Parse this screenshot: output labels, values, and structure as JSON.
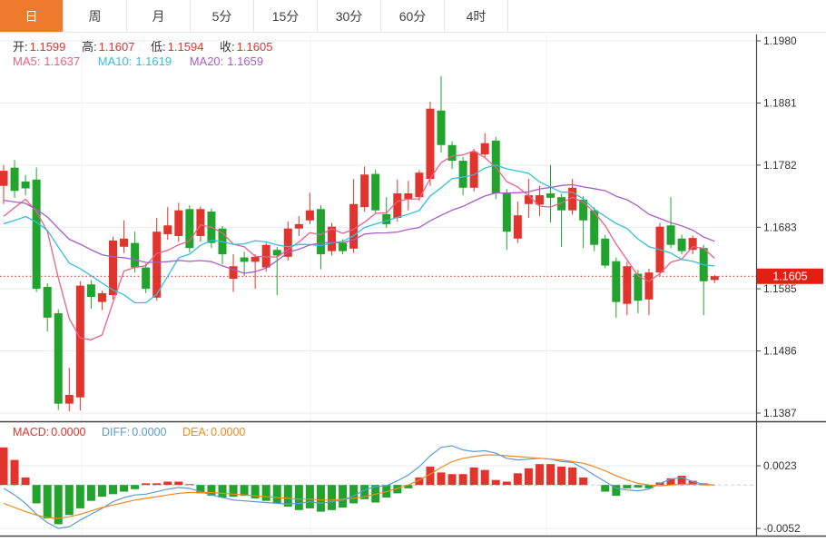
{
  "tabs": {
    "items": [
      {
        "label": "日",
        "active": true
      },
      {
        "label": "周",
        "active": false
      },
      {
        "label": "月",
        "active": false
      },
      {
        "label": "5分",
        "active": false
      },
      {
        "label": "15分",
        "active": false
      },
      {
        "label": "30分",
        "active": false
      },
      {
        "label": "60分",
        "active": false
      },
      {
        "label": "4时",
        "active": false
      }
    ]
  },
  "legend": {
    "open_label": "开:",
    "open": "1.1599",
    "high_label": "高:",
    "high": "1.1607",
    "low_label": "低:",
    "low": "1.1594",
    "close_label": "收:",
    "close": "1.1605",
    "ma5_label": "MA5:",
    "ma5": "1.1637",
    "ma10_label": "MA10:",
    "ma10": "1.1619",
    "ma20_label": "MA20:",
    "ma20": "1.1659"
  },
  "macd_legend": {
    "macd_label": "MACD:",
    "macd": "0.0000",
    "diff_label": "DIFF:",
    "diff": "0.0000",
    "dea_label": "DEA:",
    "dea": "0.0000"
  },
  "price_axis": {
    "ticks": [
      "1.1980",
      "1.1881",
      "1.1782",
      "1.1683",
      "1.1585",
      "1.1486",
      "1.1387"
    ],
    "last_price": "1.1605"
  },
  "macd_axis": {
    "ticks": [
      "0.0023",
      "-0.0052"
    ]
  },
  "colors": {
    "accent_orange": "#ee7b2d",
    "up_red": "#e0342c",
    "down_green": "#22a32e",
    "ma5_pink": "#ec6088",
    "ma10_cyan": "#33c0d8",
    "ma20_purple": "#a85cc8",
    "diff_blue": "#5b9bd5",
    "dea_orange": "#ee8a22",
    "value_red": "#e0342c",
    "label_dark": "#333333",
    "grid": "#e7edf2",
    "grid_vertical": "#f0f2f4",
    "axis_line": "#444444",
    "zero_dash": "#bcd2e0",
    "badge_red": "#e31f14",
    "badge_text": "#ffffff"
  },
  "chart_data": {
    "type": "candlestick+macd",
    "title": "",
    "up_means": "close>=open (red)",
    "down_means": "close<open (green)",
    "y_ticks": [
      1.198,
      1.1881,
      1.1782,
      1.1683,
      1.1585,
      1.1486,
      1.1387
    ],
    "price_line": 1.1605,
    "ma_periods": [
      5,
      10,
      20
    ],
    "ma_seed_closes": [
      1.1795,
      1.179,
      1.1782,
      1.1775,
      1.1768,
      1.176,
      1.1752,
      1.1745,
      1.1738,
      1.173,
      1.1688,
      1.1682,
      1.1675,
      1.167,
      1.1668,
      1.1672,
      1.1678,
      1.1685,
      1.1695
    ],
    "candles": [
      [
        1.1749,
        1.1782,
        1.172,
        1.1773
      ],
      [
        1.1778,
        1.179,
        1.173,
        1.1741
      ],
      [
        1.1756,
        1.1766,
        1.1734,
        1.1745
      ],
      [
        1.1759,
        1.1778,
        1.158,
        1.1585
      ],
      [
        1.1588,
        1.1594,
        1.1517,
        1.1539
      ],
      [
        1.1546,
        1.1552,
        1.1392,
        1.1402
      ],
      [
        1.1402,
        1.1459,
        1.139,
        1.1416
      ],
      [
        1.1412,
        1.1597,
        1.1391,
        1.159
      ],
      [
        1.1592,
        1.1599,
        1.1553,
        1.1572
      ],
      [
        1.1564,
        1.1582,
        1.1551,
        1.1578
      ],
      [
        1.1575,
        1.1668,
        1.1568,
        1.1662
      ],
      [
        1.1652,
        1.1694,
        1.1642,
        1.1665
      ],
      [
        1.1658,
        1.1676,
        1.1611,
        1.1619
      ],
      [
        1.1619,
        1.1625,
        1.1578,
        1.1585
      ],
      [
        1.1571,
        1.1698,
        1.1566,
        1.1676
      ],
      [
        1.1672,
        1.1715,
        1.1663,
        1.1686
      ],
      [
        1.1669,
        1.1722,
        1.166,
        1.171
      ],
      [
        1.1712,
        1.1718,
        1.1643,
        1.165
      ],
      [
        1.1669,
        1.1716,
        1.166,
        1.1712
      ],
      [
        1.1708,
        1.1713,
        1.165,
        1.1658
      ],
      [
        1.1681,
        1.1685,
        1.1624,
        1.164
      ],
      [
        1.1601,
        1.164,
        1.158,
        1.1621
      ],
      [
        1.1635,
        1.1644,
        1.1605,
        1.1628
      ],
      [
        1.1628,
        1.164,
        1.1585,
        1.1636
      ],
      [
        1.1619,
        1.1658,
        1.1612,
        1.1655
      ],
      [
        1.1647,
        1.1652,
        1.1575,
        1.1638
      ],
      [
        1.1636,
        1.1692,
        1.163,
        1.1681
      ],
      [
        1.1681,
        1.1701,
        1.1669,
        1.1688
      ],
      [
        1.1694,
        1.1738,
        1.1688,
        1.171
      ],
      [
        1.1712,
        1.1718,
        1.1616,
        1.164
      ],
      [
        1.1645,
        1.169,
        1.1638,
        1.1684
      ],
      [
        1.1658,
        1.1664,
        1.164,
        1.1645
      ],
      [
        1.1649,
        1.176,
        1.1642,
        1.172
      ],
      [
        1.1715,
        1.178,
        1.1708,
        1.1767
      ],
      [
        1.1768,
        1.1775,
        1.1705,
        1.171
      ],
      [
        1.1704,
        1.1731,
        1.1682,
        1.1688
      ],
      [
        1.1698,
        1.1759,
        1.1692,
        1.1737
      ],
      [
        1.1728,
        1.1757,
        1.171,
        1.1737
      ],
      [
        1.1731,
        1.1774,
        1.1725,
        1.177
      ],
      [
        1.176,
        1.1883,
        1.1749,
        1.1872
      ],
      [
        1.1869,
        1.1924,
        1.1802,
        1.1814
      ],
      [
        1.1814,
        1.182,
        1.1776,
        1.1789
      ],
      [
        1.1789,
        1.1795,
        1.1734,
        1.1746
      ],
      [
        1.1746,
        1.1808,
        1.174,
        1.1803
      ],
      [
        1.1799,
        1.1833,
        1.1793,
        1.1817
      ],
      [
        1.1821,
        1.1827,
        1.1728,
        1.1737
      ],
      [
        1.1738,
        1.1744,
        1.1647,
        1.1676
      ],
      [
        1.1665,
        1.1724,
        1.1658,
        1.1702
      ],
      [
        1.172,
        1.176,
        1.1698,
        1.1734
      ],
      [
        1.1719,
        1.1749,
        1.1701,
        1.1734
      ],
      [
        1.1737,
        1.1782,
        1.1691,
        1.173
      ],
      [
        1.1731,
        1.1736,
        1.1652,
        1.171
      ],
      [
        1.171,
        1.176,
        1.1703,
        1.1746
      ],
      [
        1.1727,
        1.1733,
        1.165,
        1.1694
      ],
      [
        1.171,
        1.1715,
        1.1645,
        1.1655
      ],
      [
        1.1665,
        1.1671,
        1.1618,
        1.1622
      ],
      [
        1.1629,
        1.1635,
        1.1539,
        1.1564
      ],
      [
        1.1561,
        1.1628,
        1.1543,
        1.1621
      ],
      [
        1.1609,
        1.1615,
        1.1546,
        1.1566
      ],
      [
        1.1568,
        1.1617,
        1.1543,
        1.1611
      ],
      [
        1.1611,
        1.169,
        1.1605,
        1.1684
      ],
      [
        1.1686,
        1.1731,
        1.165,
        1.1655
      ],
      [
        1.1665,
        1.1671,
        1.164,
        1.1645
      ],
      [
        1.1647,
        1.167,
        1.164,
        1.1666
      ],
      [
        1.165,
        1.1655,
        1.1543,
        1.1597
      ],
      [
        1.1599,
        1.1607,
        1.1594,
        1.1605
      ]
    ],
    "macd": {
      "y_ticks": [
        0.0023,
        -0.0052
      ],
      "hist": [
        0.0045,
        0.003,
        0.0009,
        -0.0022,
        -0.004,
        -0.0047,
        -0.0036,
        -0.0028,
        -0.0019,
        -0.0014,
        -0.0011,
        -0.0008,
        -0.0005,
        0.0002,
        0.0002,
        0.0004,
        0.0004,
        0.0001,
        -0.001,
        -0.0013,
        -0.0015,
        -0.0014,
        -0.0013,
        -0.0016,
        -0.0019,
        -0.0022,
        -0.0026,
        -0.003,
        -0.0028,
        -0.0032,
        -0.003,
        -0.0027,
        -0.0022,
        -0.0017,
        -0.0021,
        -0.0015,
        -0.001,
        -0.0004,
        0.0009,
        0.0022,
        0.0015,
        0.0013,
        0.0013,
        0.0021,
        0.0018,
        0.0006,
        0.0004,
        0.0014,
        0.002,
        0.0025,
        0.0025,
        0.0022,
        0.0021,
        0.0009,
        0.0,
        -0.0008,
        -0.0013,
        -0.0004,
        -0.0003,
        -0.0004,
        0.0003,
        0.0008,
        0.0011,
        0.0005,
        0.0002,
        0.0
      ],
      "diff": [
        -0.0004,
        -0.0012,
        -0.0022,
        -0.0035,
        -0.0045,
        -0.0052,
        -0.005,
        -0.0042,
        -0.0035,
        -0.0028,
        -0.002,
        -0.0015,
        -0.0012,
        -0.0011,
        -0.0008,
        -0.0005,
        -0.0003,
        -0.0004,
        -0.0008,
        -0.0012,
        -0.0015,
        -0.0018,
        -0.0019,
        -0.002,
        -0.0021,
        -0.0022,
        -0.0023,
        -0.0022,
        -0.002,
        -0.0022,
        -0.002,
        -0.0018,
        -0.0013,
        -0.0006,
        -0.0002,
        -0.0001,
        0.0005,
        0.0012,
        0.0022,
        0.0035,
        0.0045,
        0.0047,
        0.0042,
        0.004,
        0.0041,
        0.0038,
        0.0032,
        0.003,
        0.0031,
        0.0032,
        0.0031,
        0.0028,
        0.0027,
        0.002,
        0.0012,
        0.0004,
        -0.0004,
        -0.0006,
        -0.0007,
        -0.0005,
        0.0002,
        0.0007,
        0.0009,
        0.0004,
        0.0001,
        0.0
      ],
      "dea": [
        -0.0022,
        -0.0027,
        -0.0032,
        -0.0036,
        -0.0039,
        -0.004,
        -0.0038,
        -0.0035,
        -0.0031,
        -0.0027,
        -0.0024,
        -0.0021,
        -0.0018,
        -0.0016,
        -0.0014,
        -0.0012,
        -0.001,
        -0.0009,
        -0.0009,
        -0.0009,
        -0.001,
        -0.0011,
        -0.0012,
        -0.0013,
        -0.0014,
        -0.0015,
        -0.0016,
        -0.0017,
        -0.0017,
        -0.0018,
        -0.0018,
        -0.0017,
        -0.0016,
        -0.0014,
        -0.0011,
        -0.0008,
        -0.0004,
        0.0,
        0.0006,
        0.0013,
        0.0021,
        0.0028,
        0.0032,
        0.0034,
        0.0036,
        0.0036,
        0.0035,
        0.0034,
        0.0033,
        0.0032,
        0.0031,
        0.003,
        0.0028,
        0.0026,
        0.0022,
        0.0017,
        0.0011,
        0.0006,
        0.0002,
        0.0,
        -0.0001,
        0.0,
        0.0001,
        0.0001,
        0.0,
        0.0
      ]
    }
  }
}
